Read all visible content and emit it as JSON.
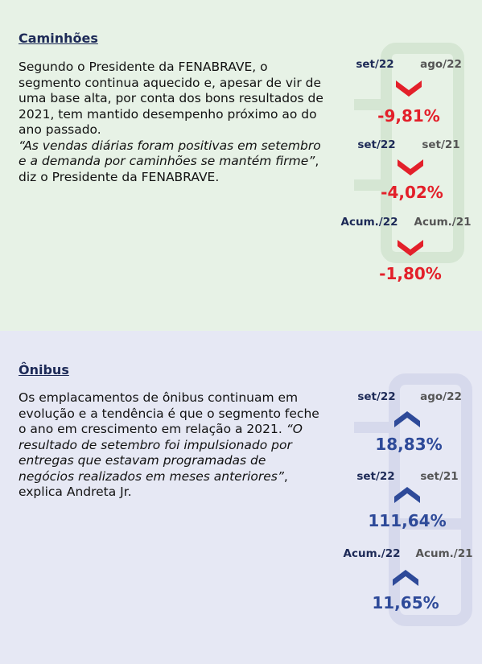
{
  "sections": [
    {
      "title": "Caminhões",
      "paragraph": {
        "text": "Segundo o Presidente da FENABRAVE, o segmento continua aquecido e, apesar de vir de uma base alta, por conta dos bons resultados de 2021, tem mantido desempenho próximo ao do ano passado.",
        "quote": "“As vendas diárias foram positivas em setembro e a demanda por caminhões se mantém firme”",
        "after": ", diz o Presidente da FENABRAVE."
      },
      "comparisons": [
        {
          "current": "set/22",
          "previous": "ago/22",
          "change": "-9,81%"
        },
        {
          "current": "set/22",
          "previous": "set/21",
          "change": "-4,02%"
        },
        {
          "current": "Acum./22",
          "previous": "Acum./21",
          "change": "-1,80%"
        }
      ]
    },
    {
      "title": "Ônibus",
      "paragraph": {
        "text": "Os emplacamentos de ônibus continuam em evolução e a tendência é que o segmento feche o ano em crescimento em relação a 2021.",
        "quote": "“O resultado de setembro foi impulsionado por entregas que estavam programadas de negócios realizados em meses anteriores”",
        "after": ", explica Andreta Jr."
      },
      "comparisons": [
        {
          "current": "set/22",
          "previous": "ago/22",
          "change": "18,83%"
        },
        {
          "current": "set/22",
          "previous": "set/21",
          "change": "111,64%"
        },
        {
          "current": "Acum./22",
          "previous": "Acum./21",
          "change": "11,65%"
        }
      ]
    }
  ]
}
